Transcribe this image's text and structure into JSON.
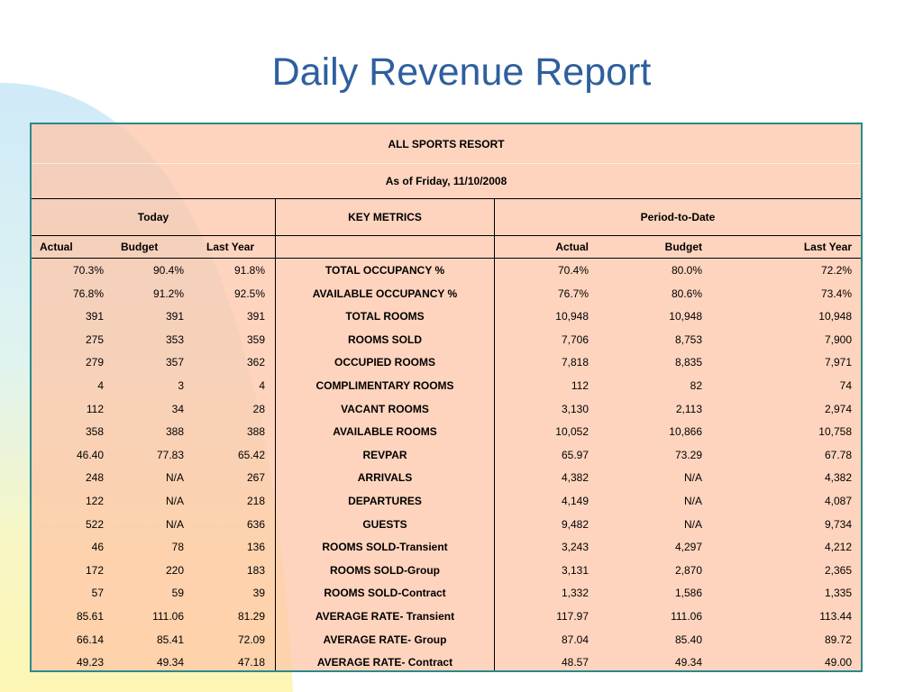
{
  "title": "Daily Revenue Report",
  "report": {
    "property": "ALL SPORTS RESORT",
    "as_of": "As of Friday, 11/10/2008",
    "groups": {
      "today": "Today",
      "metrics": "KEY METRICS",
      "ptd": "Period-to-Date"
    },
    "columns": {
      "today_actual": "Actual",
      "today_budget": "Budget",
      "today_last_year": "Last Year",
      "ptd_actual": "Actual",
      "ptd_budget": "Budget",
      "ptd_last_year": "Last Year"
    },
    "rows": [
      {
        "today_actual": "70.3%",
        "today_budget": "90.4%",
        "today_last_year": "91.8%",
        "metric": "TOTAL OCCUPANCY %",
        "ptd_actual": "70.4%",
        "ptd_budget": "80.0%",
        "ptd_last_year": "72.2%"
      },
      {
        "today_actual": "76.8%",
        "today_budget": "91.2%",
        "today_last_year": "92.5%",
        "metric": "AVAILABLE OCCUPANCY %",
        "ptd_actual": "76.7%",
        "ptd_budget": "80.6%",
        "ptd_last_year": "73.4%"
      },
      {
        "today_actual": "391",
        "today_budget": "391",
        "today_last_year": "391",
        "metric": "TOTAL ROOMS",
        "ptd_actual": "10,948",
        "ptd_budget": "10,948",
        "ptd_last_year": "10,948"
      },
      {
        "today_actual": "275",
        "today_budget": "353",
        "today_last_year": "359",
        "metric": "ROOMS SOLD",
        "ptd_actual": "7,706",
        "ptd_budget": "8,753",
        "ptd_last_year": "7,900"
      },
      {
        "today_actual": "279",
        "today_budget": "357",
        "today_last_year": "362",
        "metric": "OCCUPIED ROOMS",
        "ptd_actual": "7,818",
        "ptd_budget": "8,835",
        "ptd_last_year": "7,971"
      },
      {
        "today_actual": "4",
        "today_budget": "3",
        "today_last_year": "4",
        "metric": "COMPLIMENTARY ROOMS",
        "ptd_actual": "112",
        "ptd_budget": "82",
        "ptd_last_year": "74"
      },
      {
        "today_actual": "112",
        "today_budget": "34",
        "today_last_year": "28",
        "metric": "VACANT ROOMS",
        "ptd_actual": "3,130",
        "ptd_budget": "2,113",
        "ptd_last_year": "2,974"
      },
      {
        "today_actual": "358",
        "today_budget": "388",
        "today_last_year": "388",
        "metric": "AVAILABLE ROOMS",
        "ptd_actual": "10,052",
        "ptd_budget": "10,866",
        "ptd_last_year": "10,758"
      },
      {
        "today_actual": "46.40",
        "today_budget": "77.83",
        "today_last_year": "65.42",
        "metric": "REVPAR",
        "ptd_actual": "65.97",
        "ptd_budget": "73.29",
        "ptd_last_year": "67.78"
      },
      {
        "today_actual": "248",
        "today_budget": "N/A",
        "today_last_year": "267",
        "metric": "ARRIVALS",
        "ptd_actual": "4,382",
        "ptd_budget": "N/A",
        "ptd_last_year": "4,382"
      },
      {
        "today_actual": "122",
        "today_budget": "N/A",
        "today_last_year": "218",
        "metric": "DEPARTURES",
        "ptd_actual": "4,149",
        "ptd_budget": "N/A",
        "ptd_last_year": "4,087"
      },
      {
        "today_actual": "522",
        "today_budget": "N/A",
        "today_last_year": "636",
        "metric": "GUESTS",
        "ptd_actual": "9,482",
        "ptd_budget": "N/A",
        "ptd_last_year": "9,734"
      },
      {
        "today_actual": "46",
        "today_budget": "78",
        "today_last_year": "136",
        "metric": "ROOMS SOLD-Transient",
        "ptd_actual": "3,243",
        "ptd_budget": "4,297",
        "ptd_last_year": "4,212"
      },
      {
        "today_actual": "172",
        "today_budget": "220",
        "today_last_year": "183",
        "metric": "ROOMS SOLD-Group",
        "ptd_actual": "3,131",
        "ptd_budget": "2,870",
        "ptd_last_year": "2,365"
      },
      {
        "today_actual": "57",
        "today_budget": "59",
        "today_last_year": "39",
        "metric": "ROOMS SOLD-Contract",
        "ptd_actual": "1,332",
        "ptd_budget": "1,586",
        "ptd_last_year": "1,335"
      },
      {
        "today_actual": "85.61",
        "today_budget": "111.06",
        "today_last_year": "81.29",
        "metric": "AVERAGE RATE- Transient",
        "ptd_actual": "117.97",
        "ptd_budget": "111.06",
        "ptd_last_year": "113.44"
      },
      {
        "today_actual": "66.14",
        "today_budget": "85.41",
        "today_last_year": "72.09",
        "metric": "AVERAGE RATE- Group",
        "ptd_actual": "87.04",
        "ptd_budget": "85.40",
        "ptd_last_year": "89.72"
      },
      {
        "today_actual": "49.23",
        "today_budget": "49.34",
        "today_last_year": "47.18",
        "metric": "AVERAGE RATE- Contract",
        "ptd_actual": "48.57",
        "ptd_budget": "49.34",
        "ptd_last_year": "49.00"
      }
    ]
  },
  "colors": {
    "title": "#2e5f9e",
    "table_border": "#2a8a8a",
    "table_fill": "#ffc3a5"
  }
}
